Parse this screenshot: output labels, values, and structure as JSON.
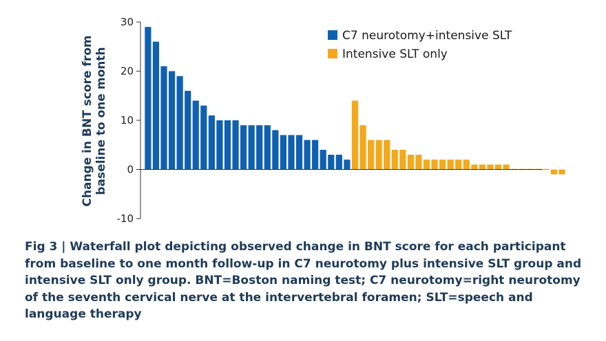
{
  "chart_data": {
    "type": "bar",
    "ylabel_line1": "Change in BNT score from",
    "ylabel_line2": "baseline to one month",
    "ylim": [
      -10,
      30
    ],
    "yticks": [
      "30",
      "20",
      "10",
      "0",
      "-10"
    ],
    "grid": false,
    "legend_position": "top-right",
    "series": [
      {
        "name": "C7 neurotomy+intensive SLT",
        "color": "#1060b0",
        "values": [
          29,
          26,
          21,
          20,
          19,
          16,
          14,
          13,
          11,
          10,
          10,
          10,
          9,
          9,
          9,
          9,
          8,
          7,
          7,
          7,
          6,
          6,
          4,
          3,
          3,
          2
        ]
      },
      {
        "name": "Intensive SLT only",
        "color": "#f5a81c",
        "values": [
          14,
          9,
          6,
          6,
          6,
          4,
          4,
          3,
          3,
          2,
          2,
          2,
          2,
          2,
          2,
          1,
          1,
          1,
          1,
          1,
          0,
          0,
          0,
          0,
          0,
          -1,
          -1
        ]
      }
    ]
  },
  "caption": "Fig 3 | Waterfall plot depicting observed change in BNT score for each participant from baseline to one month follow-up in C7 neurotomy plus intensive SLT group and intensive SLT only group. BNT=Boston naming test; C7 neurotomy=right neurotomy of the seventh cervical nerve at the intervertebral foramen; SLT=speech and language therapy"
}
